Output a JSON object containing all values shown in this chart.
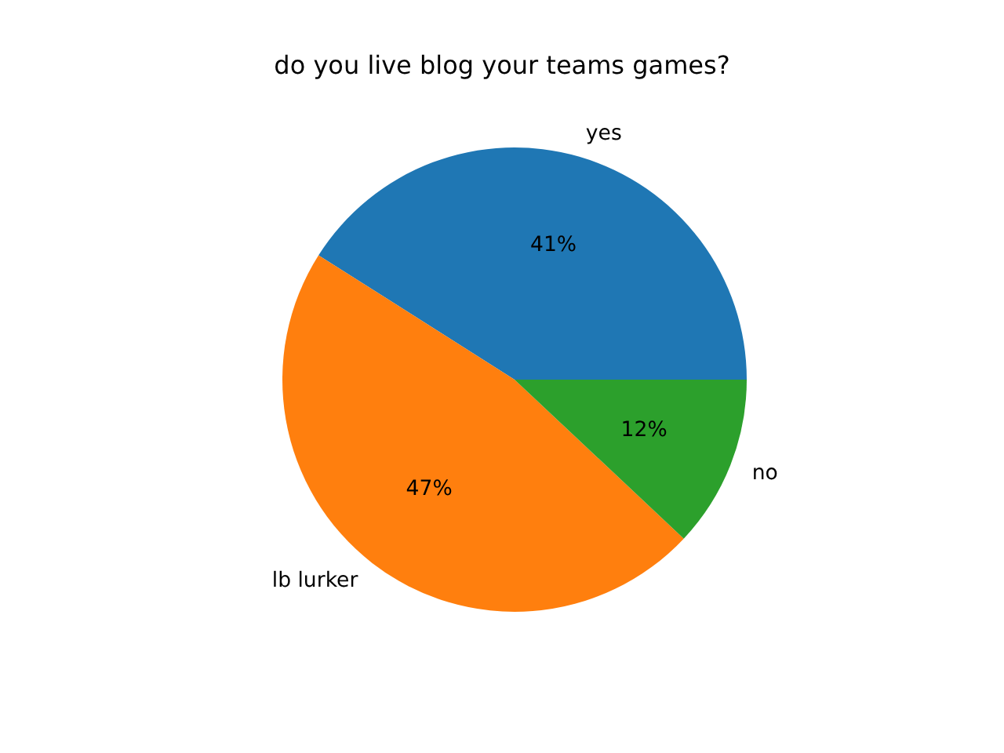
{
  "chart_data": {
    "type": "pie",
    "title": "do you live blog your teams games?",
    "categories": [
      "yes",
      "lb lurker",
      "no"
    ],
    "values": [
      41,
      47,
      12
    ],
    "colors": [
      "#1f77b4",
      "#ff7f0e",
      "#2ca02c"
    ],
    "value_labels": [
      "41%",
      "47%",
      "12%"
    ]
  }
}
